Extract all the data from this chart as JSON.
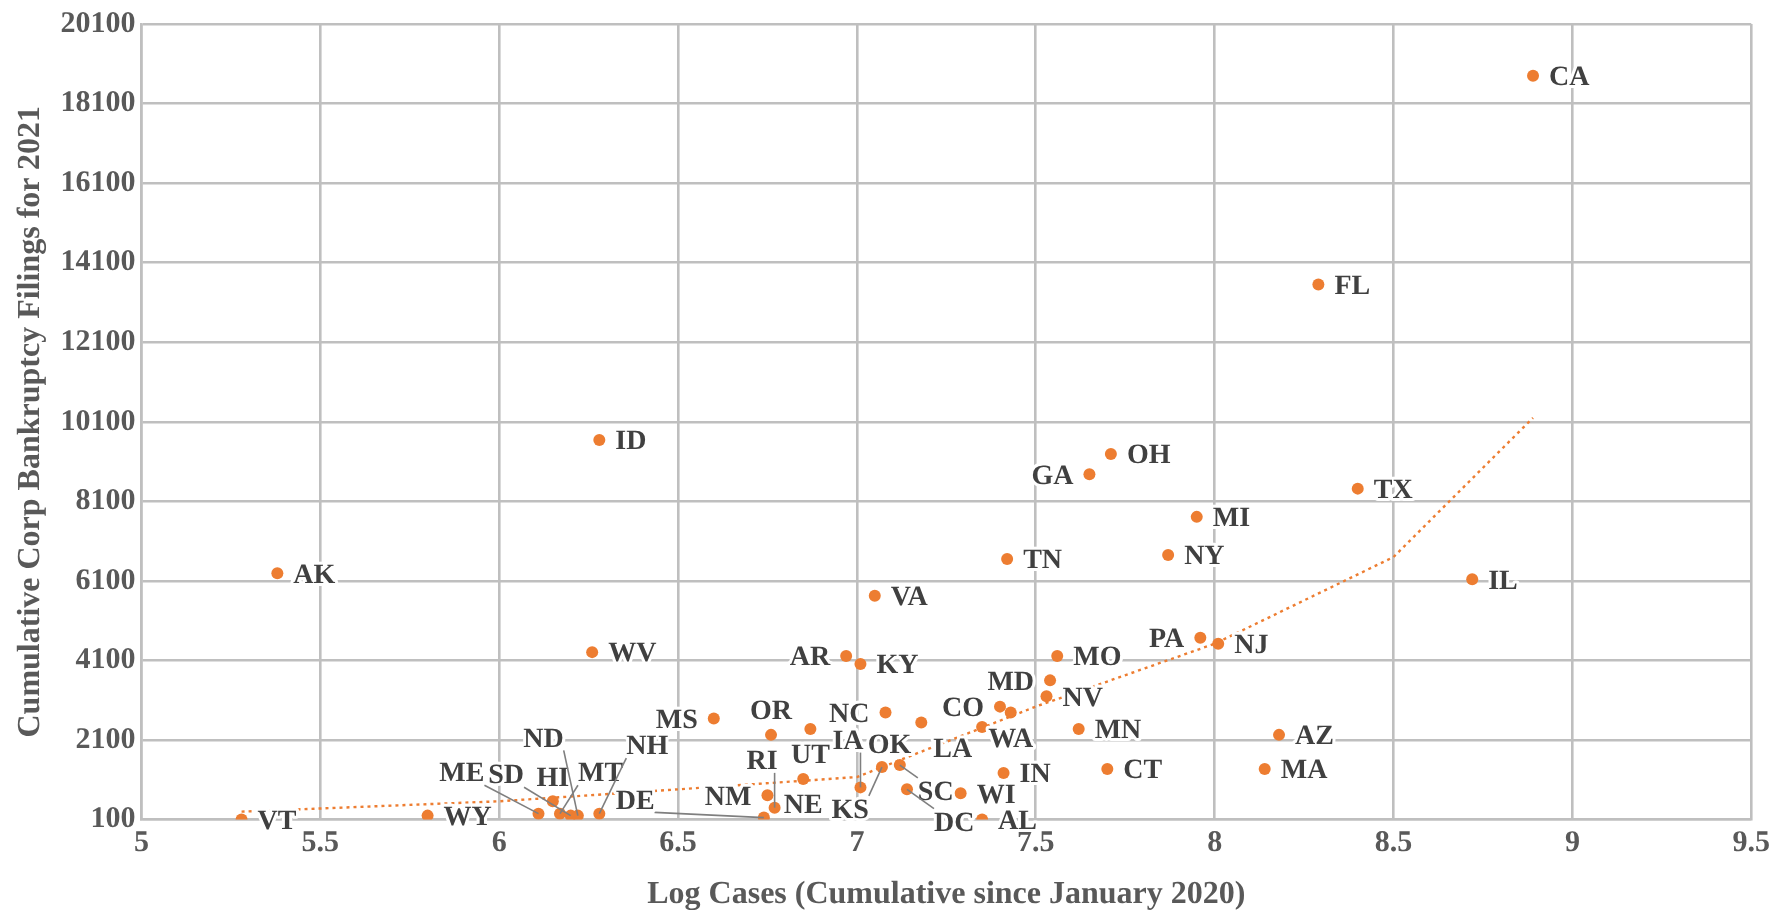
{
  "chart_data": {
    "type": "scatter",
    "xlabel": "Log Cases (Cumulative since January 2020)",
    "ylabel": "Cumulative Corp Bankruptcy Filings for 2021",
    "xlim": [
      5,
      9.5
    ],
    "xticks": [
      5,
      5.5,
      6,
      6.5,
      7,
      7.5,
      8,
      8.5,
      9,
      9.5
    ],
    "ylim": [
      100,
      20100
    ],
    "yticks": [
      100,
      2100,
      4100,
      6100,
      8100,
      10100,
      12100,
      14100,
      16100,
      18100,
      20100
    ],
    "grid": true,
    "legend": false,
    "marker": "circle",
    "series": [
      {
        "color": "#ed7d31",
        "x": [
          8.89,
          8.29,
          8.4,
          8.72,
          7.95,
          7.87,
          7.71,
          7.65,
          7.42,
          6.28,
          5.38,
          7.05,
          6.26,
          6.97,
          7.01,
          7.96,
          8.01,
          7.56,
          7.54,
          7.53,
          7.4,
          7.43,
          7.35,
          7.18,
          7.08,
          7.62,
          6.87,
          6.76,
          6.6,
          8.18,
          8.14,
          7.7,
          7.41,
          7.07,
          7.12,
          6.85,
          7.01,
          7.14,
          7.29,
          7.35,
          6.75,
          6.77,
          6.74,
          5.28,
          5.8,
          6.15,
          6.11,
          6.17,
          6.2,
          6.22,
          6.28
        ],
        "values": [
          18800,
          13550,
          8420,
          6140,
          7710,
          6750,
          9290,
          8780,
          6650,
          9640,
          6290,
          5730,
          4310,
          4210,
          4010,
          4670,
          4520,
          4210,
          3600,
          3200,
          2940,
          2790,
          2430,
          2540,
          2790,
          2380,
          2380,
          2230,
          2640,
          2230,
          1370,
          1370,
          1270,
          1420,
          1470,
          1120,
          910,
          860,
          760,
          100,
          710,
          400,
          150,
          100,
          200,
          560,
          250,
          250,
          200,
          200,
          250
        ]
      },
      {
        "type": "line",
        "color": "#ed7d31",
        "line_style": "dotted",
        "marker": "none",
        "x": [
          5.28,
          6,
          6.5,
          7,
          7.5,
          8,
          8.5,
          8.89
        ],
        "values": [
          300,
          560,
          860,
          1170,
          2940,
          4520,
          6700,
          10200
        ]
      }
    ],
    "annotations": [
      {
        "text": "CA",
        "x": 8.89,
        "y": 18800
      },
      {
        "text": "FL",
        "x": 8.29,
        "y": 13550
      },
      {
        "text": "TX",
        "x": 8.4,
        "y": 8420
      },
      {
        "text": "IL",
        "x": 8.72,
        "y": 6140
      },
      {
        "text": "MI",
        "x": 7.95,
        "y": 7710
      },
      {
        "text": "NY",
        "x": 7.87,
        "y": 6750
      },
      {
        "text": "OH",
        "x": 7.71,
        "y": 9290
      },
      {
        "text": "GA",
        "x": 7.65,
        "y": 8780
      },
      {
        "text": "TN",
        "x": 7.42,
        "y": 6650
      },
      {
        "text": "ID",
        "x": 6.28,
        "y": 9640
      },
      {
        "text": "AK",
        "x": 5.38,
        "y": 6290
      },
      {
        "text": "VA",
        "x": 7.05,
        "y": 5730
      },
      {
        "text": "WV",
        "x": 6.26,
        "y": 4310
      },
      {
        "text": "AR",
        "x": 6.97,
        "y": 4210
      },
      {
        "text": "KY",
        "x": 7.01,
        "y": 4010
      },
      {
        "text": "PA",
        "x": 7.96,
        "y": 4670
      },
      {
        "text": "NJ",
        "x": 8.01,
        "y": 4520
      },
      {
        "text": "MO",
        "x": 7.56,
        "y": 4210
      },
      {
        "text": "MD",
        "x": 7.54,
        "y": 3600
      },
      {
        "text": "NV",
        "x": 7.53,
        "y": 3200
      },
      {
        "text": "CO",
        "x": 7.4,
        "y": 2940
      },
      {
        "text": "WA",
        "x": 7.43,
        "y": 2790
      },
      {
        "text": "LA",
        "x": 7.35,
        "y": 2430
      },
      {
        "text": "OK",
        "x": 7.18,
        "y": 2540
      },
      {
        "text": "NC",
        "x": 7.08,
        "y": 2790
      },
      {
        "text": "MN",
        "x": 7.62,
        "y": 2380
      },
      {
        "text": "UT",
        "x": 6.87,
        "y": 2380
      },
      {
        "text": "OR",
        "x": 6.76,
        "y": 2230
      },
      {
        "text": "MS",
        "x": 6.6,
        "y": 2640
      },
      {
        "text": "AZ",
        "x": 8.18,
        "y": 2230
      },
      {
        "text": "MA",
        "x": 8.14,
        "y": 1370
      },
      {
        "text": "CT",
        "x": 7.7,
        "y": 1370
      },
      {
        "text": "IN",
        "x": 7.41,
        "y": 1270
      },
      {
        "text": "KS",
        "x": 7.07,
        "y": 1420
      },
      {
        "text": "SC",
        "x": 7.12,
        "y": 1470
      },
      {
        "text": "NE",
        "x": 6.85,
        "y": 1120
      },
      {
        "text": "IA",
        "x": 7.01,
        "y": 910
      },
      {
        "text": "DC",
        "x": 7.14,
        "y": 860
      },
      {
        "text": "WI",
        "x": 7.29,
        "y": 760
      },
      {
        "text": "AL",
        "x": 7.35,
        "y": 100
      },
      {
        "text": "NM",
        "x": 6.75,
        "y": 710
      },
      {
        "text": "RI",
        "x": 6.77,
        "y": 400
      },
      {
        "text": "DE",
        "x": 6.74,
        "y": 150
      },
      {
        "text": "VT",
        "x": 5.28,
        "y": 100
      },
      {
        "text": "WY",
        "x": 5.8,
        "y": 200
      },
      {
        "text": "HI",
        "x": 6.15,
        "y": 560
      },
      {
        "text": "ME",
        "x": 6.11,
        "y": 250
      },
      {
        "text": "MT",
        "x": 6.17,
        "y": 250
      },
      {
        "text": "SD",
        "x": 6.2,
        "y": 200
      },
      {
        "text": "ND",
        "x": 6.22,
        "y": 200
      },
      {
        "text": "NH",
        "x": 6.28,
        "y": 250
      }
    ]
  }
}
